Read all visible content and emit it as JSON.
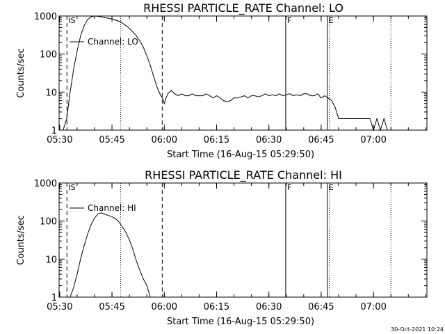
{
  "footer": "30-Oct-2021 10:24",
  "chart_data": [
    {
      "type": "line",
      "title": "RHESSI PARTICLE_RATE Channel: LO",
      "xlabel": "Start Time (16-Aug-15 05:29:50)",
      "ylabel": "Counts/sec",
      "yscale": "log",
      "ylim": [
        1,
        1000
      ],
      "xlim": [
        "05:29:50",
        "07:15:20"
      ],
      "xticks": [
        "05:30",
        "05:45",
        "06:00",
        "06:15",
        "06:30",
        "06:45",
        "07:00"
      ],
      "yticks": [
        "1",
        "10",
        "100",
        "1000"
      ],
      "legend": "Channel: LO",
      "markers": [
        {
          "label": "IS",
          "time": "05:32:05",
          "style": "dashed"
        },
        {
          "label": "",
          "time": "05:47:30",
          "style": "dotted"
        },
        {
          "label": "",
          "time": "05:59:25",
          "style": "dashed"
        },
        {
          "label": "F",
          "time": "06:34:50",
          "style": "solid"
        },
        {
          "label": "E",
          "time": "06:46:45",
          "style": "solid"
        },
        {
          "label": "",
          "time": "06:47:20",
          "style": "dotted"
        },
        {
          "label": "",
          "time": "07:05:00",
          "style": "dotted"
        }
      ],
      "series": [
        {
          "name": "Channel: LO",
          "x": [
            "05:31:00",
            "05:32:00",
            "05:33:00",
            "05:34:00",
            "05:35:00",
            "05:36:00",
            "05:37:00",
            "05:38:00",
            "05:39:00",
            "05:40:00",
            "05:41:00",
            "05:42:00",
            "05:43:00",
            "05:44:00",
            "05:45:00",
            "05:46:00",
            "05:47:00",
            "05:48:00",
            "05:49:00",
            "05:50:00",
            "05:51:00",
            "05:52:00",
            "05:53:00",
            "05:54:00",
            "05:55:00",
            "05:56:00",
            "05:57:00",
            "05:58:00",
            "05:59:00",
            "05:59:30",
            "06:00:00",
            "06:00:30",
            "06:01:00",
            "06:02:00",
            "06:03:00",
            "06:04:00",
            "06:05:00",
            "06:06:00",
            "06:07:00",
            "06:08:00",
            "06:09:00",
            "06:10:00",
            "06:11:00",
            "06:12:00",
            "06:13:00",
            "06:14:00",
            "06:15:00",
            "06:16:00",
            "06:17:00",
            "06:18:00",
            "06:19:00",
            "06:20:00",
            "06:21:00",
            "06:22:00",
            "06:23:00",
            "06:24:00",
            "06:25:00",
            "06:26:00",
            "06:27:00",
            "06:28:00",
            "06:29:00",
            "06:30:00",
            "06:31:00",
            "06:32:00",
            "06:33:00",
            "06:34:00",
            "06:35:00",
            "06:36:00",
            "06:37:00",
            "06:38:00",
            "06:39:00",
            "06:40:00",
            "06:41:00",
            "06:42:00",
            "06:43:00",
            "06:44:00",
            "06:45:00",
            "06:46:00",
            "06:47:00",
            "06:48:00",
            "06:49:00",
            "06:50:00",
            "06:51:00",
            "06:52:00",
            "06:53:00",
            "06:54:00",
            "06:55:00",
            "06:56:00",
            "06:57:00",
            "06:58:00",
            "06:59:00",
            "07:00:00",
            "07:01:00",
            "07:02:00",
            "07:03:00",
            "07:04:00"
          ],
          "y": [
            1,
            2,
            10,
            40,
            120,
            300,
            550,
            800,
            950,
            1000,
            980,
            950,
            900,
            870,
            830,
            780,
            730,
            650,
            560,
            470,
            380,
            300,
            220,
            150,
            90,
            50,
            25,
            13,
            8,
            7,
            5,
            7,
            9,
            11,
            9,
            8,
            9,
            8,
            8,
            9,
            8,
            8,
            8,
            9,
            8,
            7,
            8,
            7,
            6,
            5.5,
            6,
            7,
            7,
            7.5,
            8,
            7,
            8,
            8,
            7.5,
            8,
            9,
            8,
            8.5,
            8,
            9,
            8,
            8.5,
            9,
            8,
            8.5,
            8,
            9,
            9,
            8,
            8,
            9,
            7,
            8,
            7,
            6,
            4,
            2,
            2,
            2,
            2,
            2,
            2,
            2,
            2,
            2,
            2,
            1,
            2,
            1,
            2,
            1
          ]
        }
      ]
    },
    {
      "type": "line",
      "title": "RHESSI PARTICLE_RATE Channel: HI",
      "xlabel": "Start Time (16-Aug-15 05:29:50)",
      "ylabel": "Counts/sec",
      "yscale": "log",
      "ylim": [
        1,
        1000
      ],
      "xlim": [
        "05:29:50",
        "07:15:20"
      ],
      "xticks": [
        "05:30",
        "05:45",
        "06:00",
        "06:15",
        "06:30",
        "06:45",
        "07:00"
      ],
      "yticks": [
        "1",
        "10",
        "100",
        "1000"
      ],
      "legend": "Channel: HI",
      "markers": [
        {
          "label": "IS",
          "time": "05:32:05",
          "style": "dashed"
        },
        {
          "label": "",
          "time": "05:47:30",
          "style": "dotted"
        },
        {
          "label": "",
          "time": "05:59:25",
          "style": "dashed"
        },
        {
          "label": "F",
          "time": "06:34:50",
          "style": "solid"
        },
        {
          "label": "E",
          "time": "06:46:45",
          "style": "solid"
        },
        {
          "label": "",
          "time": "06:47:20",
          "style": "dotted"
        },
        {
          "label": "",
          "time": "07:05:00",
          "style": "dotted"
        }
      ],
      "series": [
        {
          "name": "Channel: HI",
          "x": [
            "05:33:00",
            "05:34:00",
            "05:35:00",
            "05:36:00",
            "05:37:00",
            "05:38:00",
            "05:39:00",
            "05:40:00",
            "05:41:00",
            "05:42:00",
            "05:43:00",
            "05:44:00",
            "05:45:00",
            "05:46:00",
            "05:47:00",
            "05:48:00",
            "05:49:00",
            "05:50:00",
            "05:51:00",
            "05:52:00",
            "05:53:00",
            "05:54:00",
            "05:55:00",
            "05:56:00"
          ],
          "y": [
            1,
            1.8,
            4,
            10,
            22,
            45,
            80,
            120,
            155,
            165,
            150,
            140,
            130,
            115,
            95,
            70,
            50,
            32,
            18,
            9,
            5,
            3,
            2,
            1
          ]
        }
      ]
    }
  ]
}
